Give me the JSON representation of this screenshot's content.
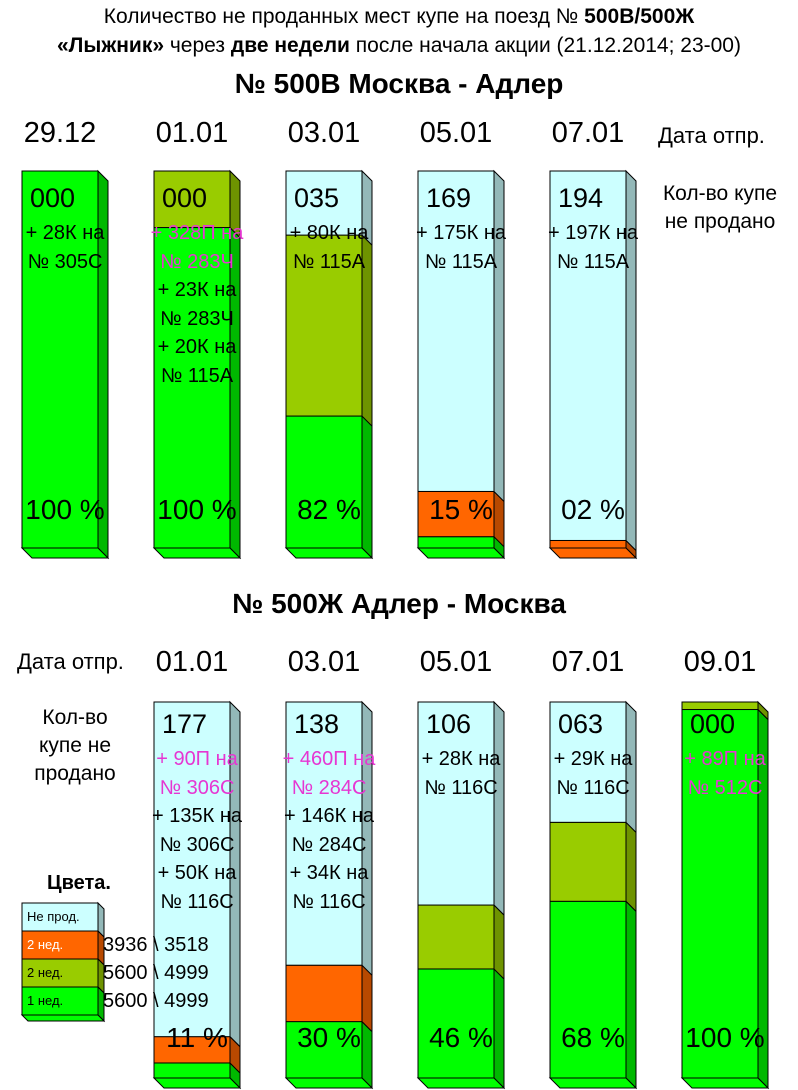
{
  "header": {
    "line1_pre": "Количество не проданных мест купе на поезд № ",
    "line1_bold": "500В/500Ж",
    "line2_bold1": "«Лыжник»",
    "line2_mid1": " через ",
    "line2_bold2": "две недели",
    "line2_mid2": " после начала акции (21.12.2014; 23-00)"
  },
  "colors": {
    "not_sold": "#ccffff",
    "two_weeks_orange": "#ff6600",
    "two_weeks_olive": "#99cc00",
    "one_week": "#00ff00",
    "magenta_text": "#e636d2"
  },
  "chart_data": [
    {
      "type": "bar",
      "title": "№ 500В Москва - Адлер",
      "date_label": "Дата отпр.",
      "side_label": "Кол-во купе не продано",
      "categories": [
        "29.12",
        "01.01",
        "03.01",
        "05.01",
        "07.01"
      ],
      "unsold": [
        "000",
        "000",
        "035",
        "169",
        "194"
      ],
      "percent_labels": [
        "100 %",
        "100 %",
        "82 %",
        "15 %",
        "02 %"
      ],
      "notes": [
        [
          {
            "text": "+ 28К на",
            "magenta": false
          },
          {
            "text": "№ 305С",
            "magenta": false
          }
        ],
        [
          {
            "text": "+ 328П на",
            "magenta": true
          },
          {
            "text": "№ 283Ч",
            "magenta": true
          },
          {
            "text": "+ 23К на",
            "magenta": false
          },
          {
            "text": "№ 283Ч",
            "magenta": false
          },
          {
            "text": "+ 20К на",
            "magenta": false
          },
          {
            "text": "№ 115А",
            "magenta": false
          }
        ],
        [
          {
            "text": "+ 80К на",
            "magenta": false
          },
          {
            "text": "№ 115А",
            "magenta": false
          }
        ],
        [
          {
            "text": "+ 175К на",
            "magenta": false
          },
          {
            "text": "№ 115А",
            "magenta": false
          }
        ],
        [
          {
            "text": "+ 197К на",
            "magenta": false
          },
          {
            "text": "№ 115А",
            "magenta": false
          }
        ]
      ],
      "segments_percent": [
        {
          "one_week": 100,
          "two_weeks": 0,
          "two_weeks_color": "olive",
          "not_sold": 0
        },
        {
          "one_week": 85,
          "two_weeks": 15,
          "two_weeks_color": "olive",
          "not_sold": 0
        },
        {
          "one_week": 35,
          "two_weeks": 48,
          "two_weeks_color": "olive",
          "not_sold": 17
        },
        {
          "one_week": 3,
          "two_weeks": 12,
          "two_weeks_color": "orange",
          "not_sold": 85
        },
        {
          "one_week": 0,
          "two_weeks": 2,
          "two_weeks_color": "orange",
          "not_sold": 98
        }
      ]
    },
    {
      "type": "bar",
      "title": "№ 500Ж Адлер - Москва",
      "date_label": "Дата отпр.",
      "side_label": "Кол-во купе не продано",
      "categories": [
        "01.01",
        "03.01",
        "05.01",
        "07.01",
        "09.01"
      ],
      "unsold": [
        "177",
        "138",
        "106",
        "063",
        "000"
      ],
      "percent_labels": [
        "11 %",
        "30 %",
        "46 %",
        "68 %",
        "100 %"
      ],
      "notes": [
        [
          {
            "text": "+ 90П на",
            "magenta": true
          },
          {
            "text": "№ 306С",
            "magenta": true
          },
          {
            "text": "+ 135К на",
            "magenta": false
          },
          {
            "text": "№ 306С",
            "magenta": false
          },
          {
            "text": "+ 50К на",
            "magenta": false
          },
          {
            "text": "№ 116С",
            "magenta": false
          }
        ],
        [
          {
            "text": "+ 460П на",
            "magenta": true
          },
          {
            "text": "№ 284С",
            "magenta": true
          },
          {
            "text": "+ 146К на",
            "magenta": false
          },
          {
            "text": "№ 284С",
            "magenta": false
          },
          {
            "text": "+ 34К на",
            "magenta": false
          },
          {
            "text": "№ 116С",
            "magenta": false
          }
        ],
        [
          {
            "text": "+ 28К на",
            "magenta": false
          },
          {
            "text": "№ 116С",
            "magenta": false
          }
        ],
        [
          {
            "text": "+ 29К на",
            "magenta": false
          },
          {
            "text": "№ 116С",
            "magenta": false
          }
        ],
        [
          {
            "text": "+ 89П на",
            "magenta": true
          },
          {
            "text": "№ 512С",
            "magenta": true
          }
        ]
      ],
      "segments_percent": [
        {
          "one_week": 4,
          "two_weeks": 7,
          "two_weeks_color": "orange",
          "not_sold": 89
        },
        {
          "one_week": 15,
          "two_weeks": 15,
          "two_weeks_color": "orange",
          "not_sold": 70
        },
        {
          "one_week": 29,
          "two_weeks": 17,
          "two_weeks_color": "olive",
          "not_sold": 54
        },
        {
          "one_week": 47,
          "two_weeks": 21,
          "two_weeks_color": "olive",
          "not_sold": 32
        },
        {
          "one_week": 98,
          "two_weeks": 2,
          "two_weeks_color": "olive",
          "not_sold": 0
        }
      ]
    }
  ],
  "legend": {
    "title": "Цвета.",
    "items": [
      {
        "label": "Не прод.",
        "color": "#ccffff",
        "value": ""
      },
      {
        "label": "2 нед.",
        "color": "#ff6600",
        "value": "3936 \\ 3518"
      },
      {
        "label": "2 нед.",
        "color": "#99cc00",
        "value": "5600 \\ 4999"
      },
      {
        "label": "1 нед.",
        "color": "#00ff00",
        "value": "5600 \\ 4999"
      }
    ]
  }
}
